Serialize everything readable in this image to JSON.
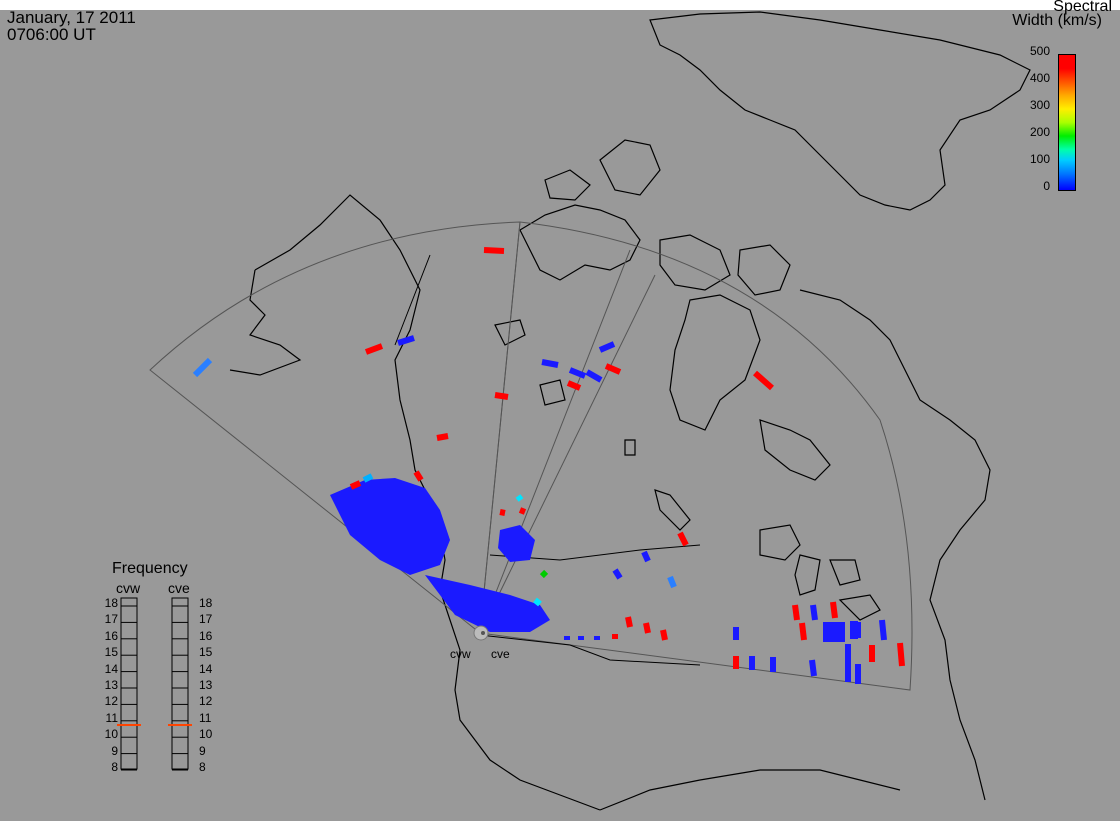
{
  "header": {
    "date": "January, 17 2011",
    "time": "0706:00 UT"
  },
  "colorbar": {
    "title_line1": "Spectral",
    "title_line2": "Width (km/s)",
    "ticks": [
      "500",
      "400",
      "300",
      "200",
      "100",
      "0"
    ],
    "range": [
      0,
      500
    ],
    "colors": [
      "#0000ff",
      "#00ccff",
      "#00ee00",
      "#ffee00",
      "#ff0000"
    ]
  },
  "frequency_panel": {
    "title": "Frequency",
    "radars": [
      "cvw",
      "cve"
    ],
    "scale": [
      "18",
      "17",
      "16",
      "15",
      "14",
      "13",
      "12",
      "11",
      "10",
      "9",
      "8"
    ],
    "marker_mhz": {
      "cvw": 10.7,
      "cve": 10.7
    },
    "marker_color": "#ff4400"
  },
  "sites": {
    "cvw": "cvw",
    "cve": "cve"
  },
  "colors": {
    "background": "#999999",
    "coast": "#000000",
    "fov": "#444444",
    "low": "#1a1aff",
    "high": "#ff0000"
  }
}
